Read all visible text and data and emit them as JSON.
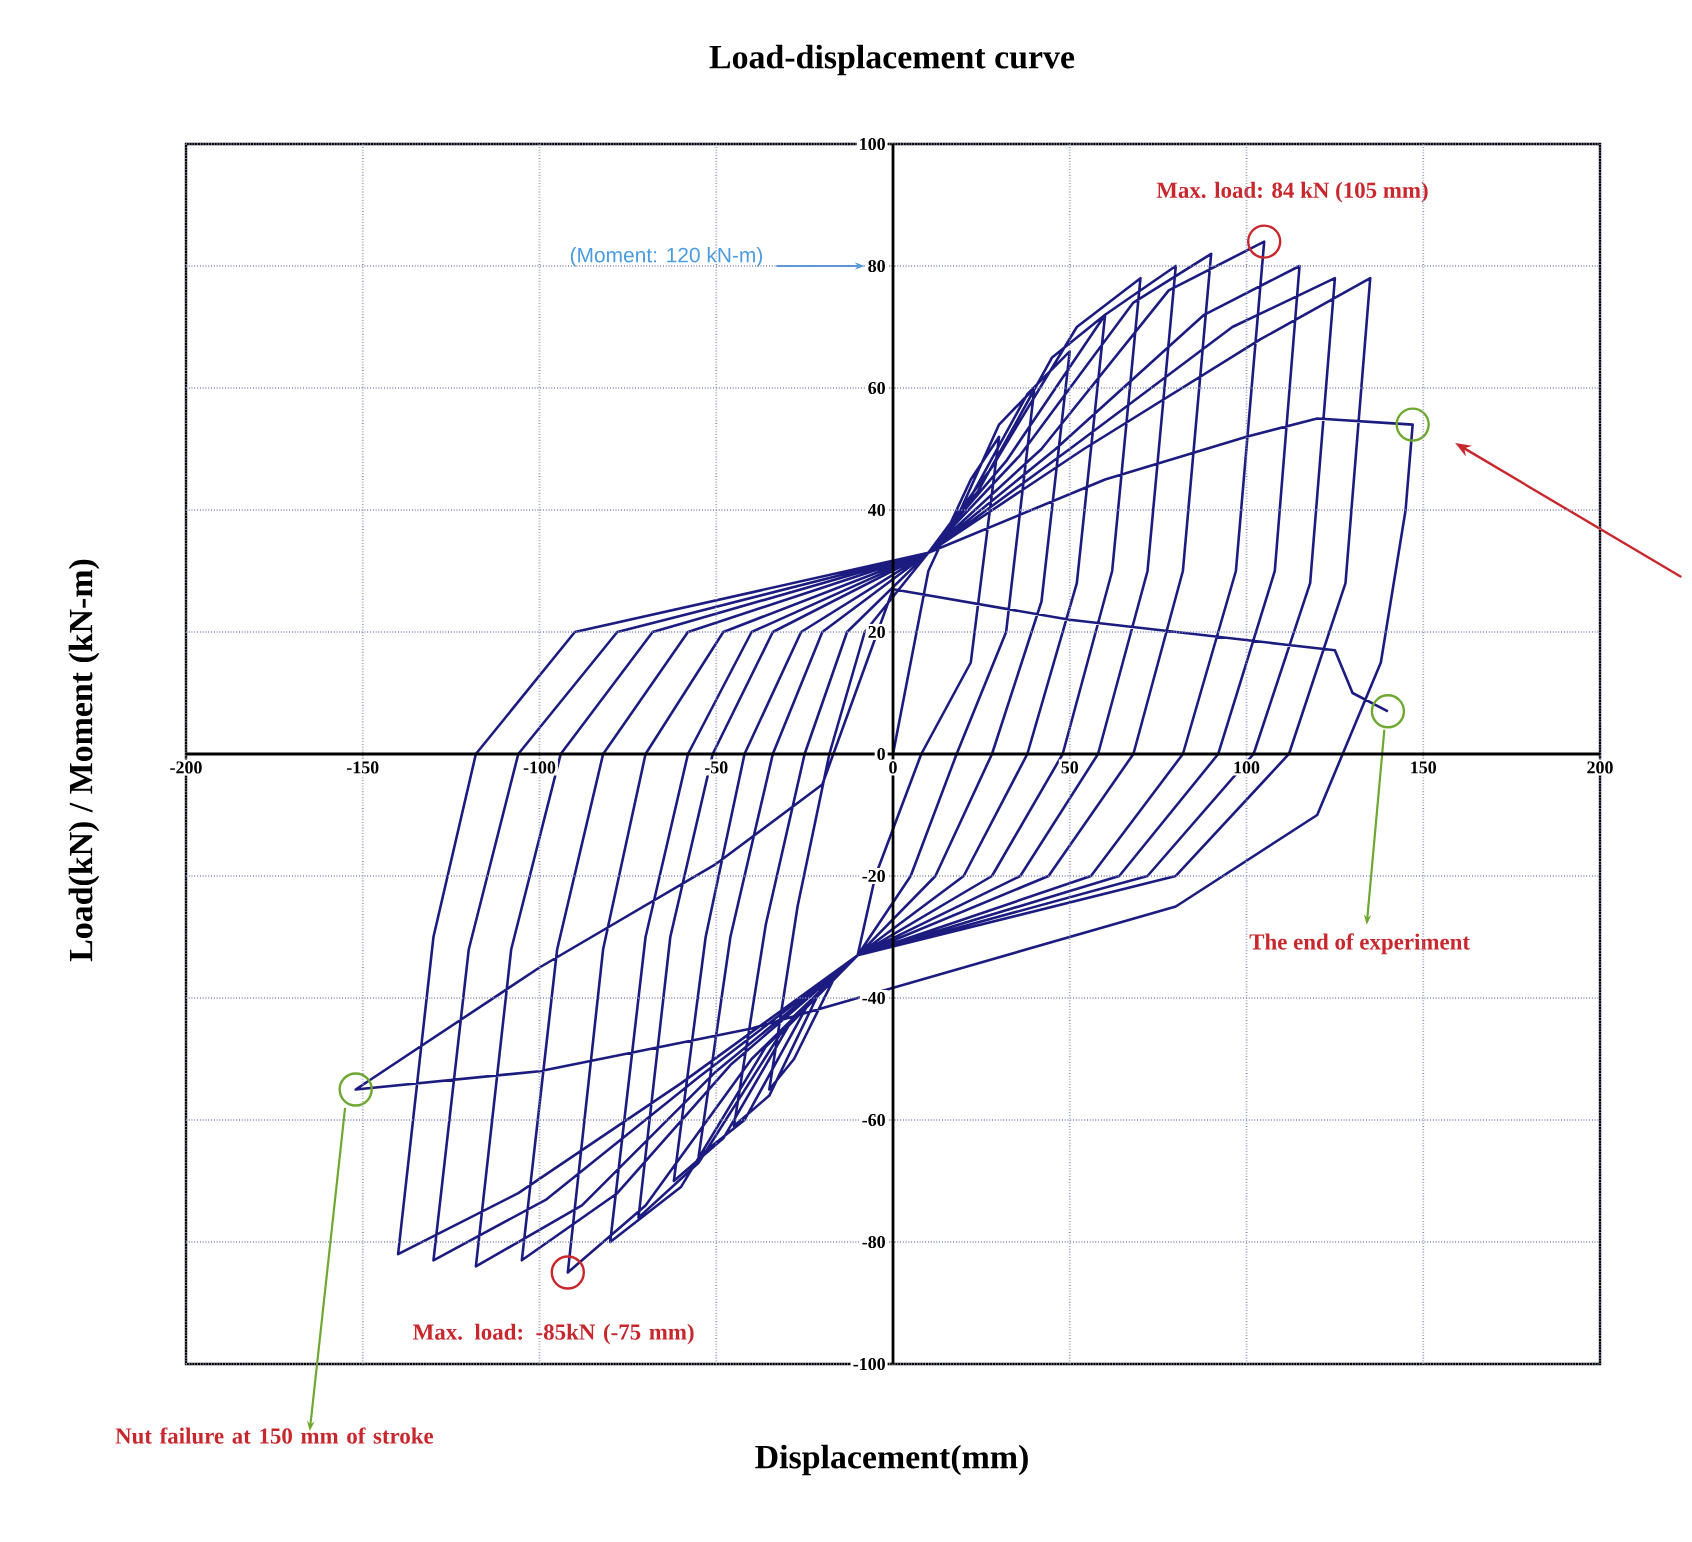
{
  "chart_data": {
    "type": "line",
    "title": "Load-displacement curve",
    "xlabel": "Displacement(mm)",
    "ylabel": "Load(kN) / Moment (kN-m)",
    "xlim": [
      -200,
      200
    ],
    "xticks": [
      -200,
      -150,
      -100,
      -50,
      0,
      50,
      100,
      150,
      200
    ],
    "ylim": [
      -100,
      100
    ],
    "yticks": [
      -100,
      -80,
      -60,
      -40,
      -20,
      0,
      20,
      40,
      60,
      80,
      100
    ],
    "grid": true,
    "marker": "none",
    "line_style": "solid",
    "series": [
      {
        "color": "#1c1c80",
        "x": [
          0,
          10,
          22,
          30,
          22,
          8,
          -5,
          -10,
          -16,
          -28,
          -35,
          -27,
          -18,
          -8,
          10,
          16,
          30,
          40,
          32,
          18,
          5,
          -10,
          -20,
          -35,
          -45,
          -36,
          -25,
          -13,
          10,
          20,
          38,
          50,
          42,
          28,
          12,
          -10,
          -24,
          -42,
          -55,
          -46,
          -34,
          -20,
          10,
          24,
          45,
          60,
          52,
          38,
          20,
          -10,
          -28,
          -48,
          -62,
          -53,
          -42,
          -26,
          10,
          28,
          52,
          70,
          62,
          48,
          28,
          -10,
          -32,
          -55,
          -72,
          -63,
          -51,
          -34,
          10,
          32,
          60,
          80,
          72,
          58,
          36,
          -10,
          -36,
          -60,
          -80,
          -70,
          -58,
          -40,
          10,
          36,
          68,
          90,
          82,
          68,
          44,
          -10,
          -40,
          -70,
          -92,
          -82,
          -70,
          -48,
          10,
          42,
          78,
          105,
          97,
          82,
          56,
          -10,
          -46,
          -78,
          -105,
          -95,
          -82,
          -58,
          10,
          46,
          88,
          115,
          108,
          92,
          64,
          -10,
          -50,
          -88,
          -118,
          -108,
          -94,
          -68,
          10,
          50,
          96,
          125,
          118,
          102,
          72,
          -10,
          -55,
          -98,
          -130,
          -120,
          -106,
          -78,
          10,
          54,
          104,
          135,
          128,
          112,
          80,
          -10,
          -60,
          -106,
          -140,
          -130,
          -118,
          -90,
          10,
          60,
          100,
          120,
          147,
          145,
          138,
          120,
          80,
          20,
          -40,
          -100,
          -152,
          -100,
          -50,
          -20,
          0,
          50,
          110,
          125,
          130,
          140
        ],
        "values": [
          0,
          30,
          45,
          52,
          15,
          0,
          -20,
          -33,
          -36,
          -50,
          -55,
          -25,
          0,
          20,
          33,
          36,
          54,
          60,
          20,
          0,
          -20,
          -33,
          -38,
          -56,
          -61,
          -28,
          0,
          20,
          33,
          40,
          59,
          66,
          25,
          0,
          -20,
          -33,
          -41,
          -60,
          -66,
          -30,
          0,
          20,
          33,
          43,
          65,
          72,
          28,
          0,
          -20,
          -33,
          -43,
          -63,
          -70,
          -30,
          0,
          20,
          33,
          47,
          70,
          78,
          30,
          0,
          -20,
          -33,
          -46,
          -67,
          -76,
          -30,
          0,
          20,
          33,
          48,
          72,
          80,
          30,
          0,
          -20,
          -33,
          -48,
          -71,
          -80,
          -30,
          0,
          20,
          33,
          49,
          74,
          82,
          30,
          0,
          -20,
          -33,
          -50,
          -74,
          -85,
          -32,
          0,
          20,
          33,
          50,
          76,
          84,
          30,
          0,
          -20,
          -33,
          -51,
          -72,
          -83,
          -32,
          0,
          20,
          33,
          50,
          72,
          80,
          30,
          0,
          -20,
          -33,
          -52,
          -74,
          -84,
          -32,
          0,
          20,
          33,
          50,
          70,
          78,
          28,
          0,
          -20,
          -33,
          -53,
          -73,
          -83,
          -32,
          0,
          20,
          33,
          50,
          68,
          78,
          28,
          0,
          -20,
          -33,
          -54,
          -72,
          -82,
          -30,
          0,
          20,
          33,
          45,
          52,
          55,
          54,
          40,
          15,
          -10,
          -25,
          -35,
          -45,
          -52,
          -55,
          -35,
          -18,
          -5,
          27,
          22,
          18,
          17,
          10,
          7
        ]
      }
    ],
    "annotations": [
      "(Moment: 120 kN-m)",
      {
        "text": "Max. load: 84 kN (105 mm)",
        "x": 105,
        "y": 84
      },
      {
        "text": "Max. load: -85kN (-75 mm)",
        "x": -92,
        "y": -85
      },
      "The end of experiment",
      "Nut failure at 150 mm of stroke"
    ]
  }
}
